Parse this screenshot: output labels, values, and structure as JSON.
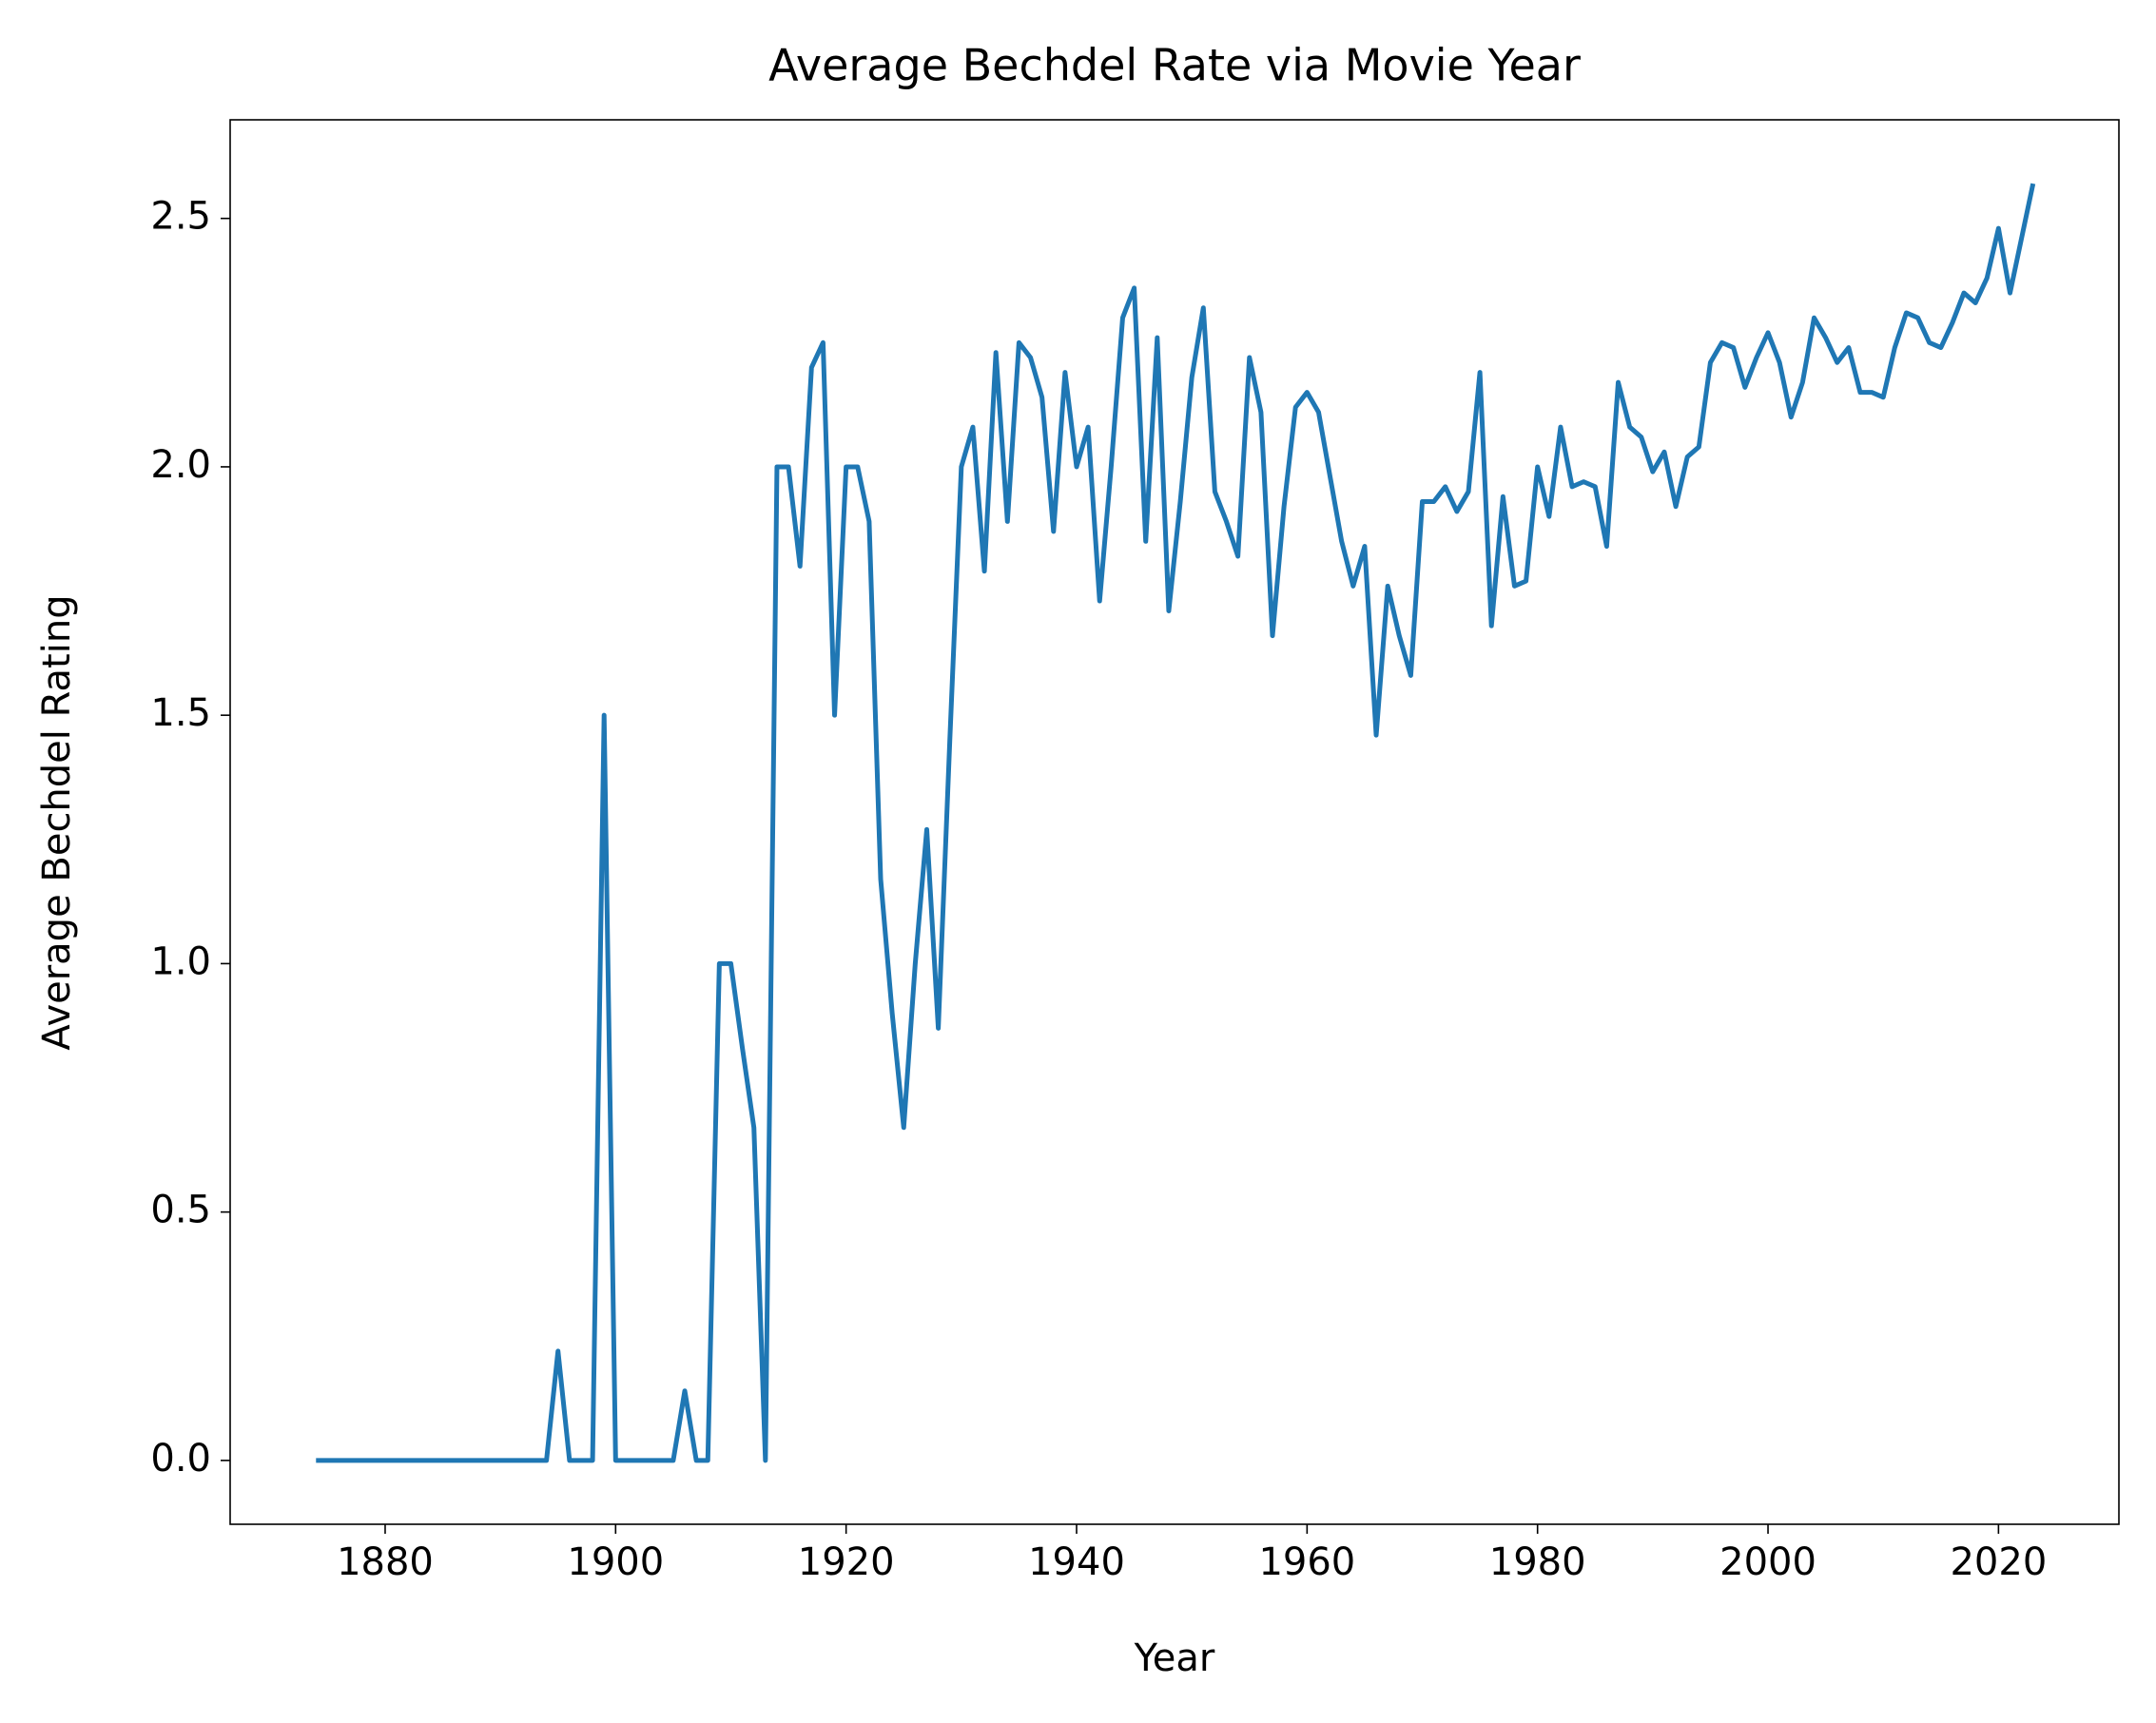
{
  "chart_data": {
    "type": "line",
    "title": "Average Bechdel Rate via Movie Year",
    "x_label": "Year",
    "y_label": "Average Bechdel Rating",
    "x": [
      1874,
      1875,
      1876,
      1877,
      1878,
      1879,
      1880,
      1881,
      1882,
      1883,
      1884,
      1885,
      1886,
      1887,
      1888,
      1889,
      1890,
      1891,
      1892,
      1893,
      1894,
      1895,
      1896,
      1897,
      1898,
      1899,
      1900,
      1901,
      1902,
      1903,
      1904,
      1905,
      1906,
      1907,
      1908,
      1909,
      1910,
      1911,
      1912,
      1913,
      1914,
      1915,
      1916,
      1917,
      1918,
      1919,
      1920,
      1921,
      1922,
      1923,
      1924,
      1925,
      1926,
      1927,
      1928,
      1929,
      1930,
      1931,
      1932,
      1933,
      1934,
      1935,
      1936,
      1937,
      1938,
      1939,
      1940,
      1941,
      1942,
      1943,
      1944,
      1945,
      1946,
      1947,
      1948,
      1949,
      1950,
      1951,
      1952,
      1953,
      1954,
      1955,
      1956,
      1957,
      1958,
      1959,
      1960,
      1961,
      1962,
      1963,
      1964,
      1965,
      1966,
      1967,
      1968,
      1969,
      1970,
      1971,
      1972,
      1973,
      1974,
      1975,
      1976,
      1977,
      1978,
      1979,
      1980,
      1981,
      1982,
      1983,
      1984,
      1985,
      1986,
      1987,
      1988,
      1989,
      1990,
      1991,
      1992,
      1993,
      1994,
      1995,
      1996,
      1997,
      1998,
      1999,
      2000,
      2001,
      2002,
      2003,
      2004,
      2005,
      2006,
      2007,
      2008,
      2009,
      2010,
      2011,
      2012,
      2013,
      2014,
      2015,
      2016,
      2017,
      2018,
      2019,
      2020,
      2021,
      2022,
      2023
    ],
    "values": [
      0,
      0,
      0,
      0,
      0,
      0,
      0,
      0,
      0,
      0,
      0,
      0,
      0,
      0,
      0,
      0,
      0,
      0,
      0,
      0,
      0,
      0.22,
      0,
      0,
      0,
      1.5,
      0,
      0,
      0,
      0,
      0,
      0,
      0.14,
      0,
      0,
      1.0,
      1.0,
      0.83,
      0.67,
      0,
      2.0,
      2.0,
      1.8,
      2.2,
      2.25,
      1.5,
      2.0,
      2.0,
      1.89,
      1.17,
      0.9,
      0.67,
      1.0,
      1.27,
      0.87,
      1.45,
      2.0,
      2.08,
      1.79,
      2.23,
      1.89,
      2.25,
      2.22,
      2.14,
      1.87,
      2.19,
      2.0,
      2.08,
      1.73,
      2.0,
      2.3,
      2.36,
      1.85,
      2.26,
      1.71,
      1.93,
      2.18,
      2.32,
      1.95,
      1.89,
      1.82,
      2.22,
      2.11,
      1.66,
      1.92,
      2.12,
      2.15,
      2.11,
      1.98,
      1.85,
      1.76,
      1.84,
      1.46,
      1.76,
      1.66,
      1.58,
      1.93,
      1.93,
      1.96,
      1.91,
      1.95,
      2.19,
      1.68,
      1.94,
      1.76,
      1.77,
      2.0,
      1.9,
      2.08,
      1.96,
      1.97,
      1.96,
      1.84,
      2.17,
      2.08,
      2.06,
      1.99,
      2.03,
      1.92,
      2.02,
      2.04,
      2.21,
      2.25,
      2.24,
      2.16,
      2.22,
      2.27,
      2.21,
      2.1,
      2.17,
      2.3,
      2.26,
      2.21,
      2.24,
      2.15,
      2.15,
      2.14,
      2.24,
      2.31,
      2.3,
      2.25,
      2.24,
      2.29,
      2.35,
      2.33,
      2.38,
      2.48,
      2.35,
      2.46,
      2.57
    ],
    "color": "#1f77b4",
    "xlim": [
      1866.55,
      2030.45
    ],
    "xticks": [
      1880,
      1900,
      1920,
      1940,
      1960,
      1980,
      2000,
      2020
    ],
    "ylim": [
      -0.1285,
      2.6985
    ],
    "yticks": [
      {
        "value": 0,
        "label": "0.0"
      },
      0.5,
      {
        "value": 1,
        "label": "1.0"
      },
      1.5,
      {
        "value": 2,
        "label": "2.0"
      },
      2.5
    ]
  }
}
